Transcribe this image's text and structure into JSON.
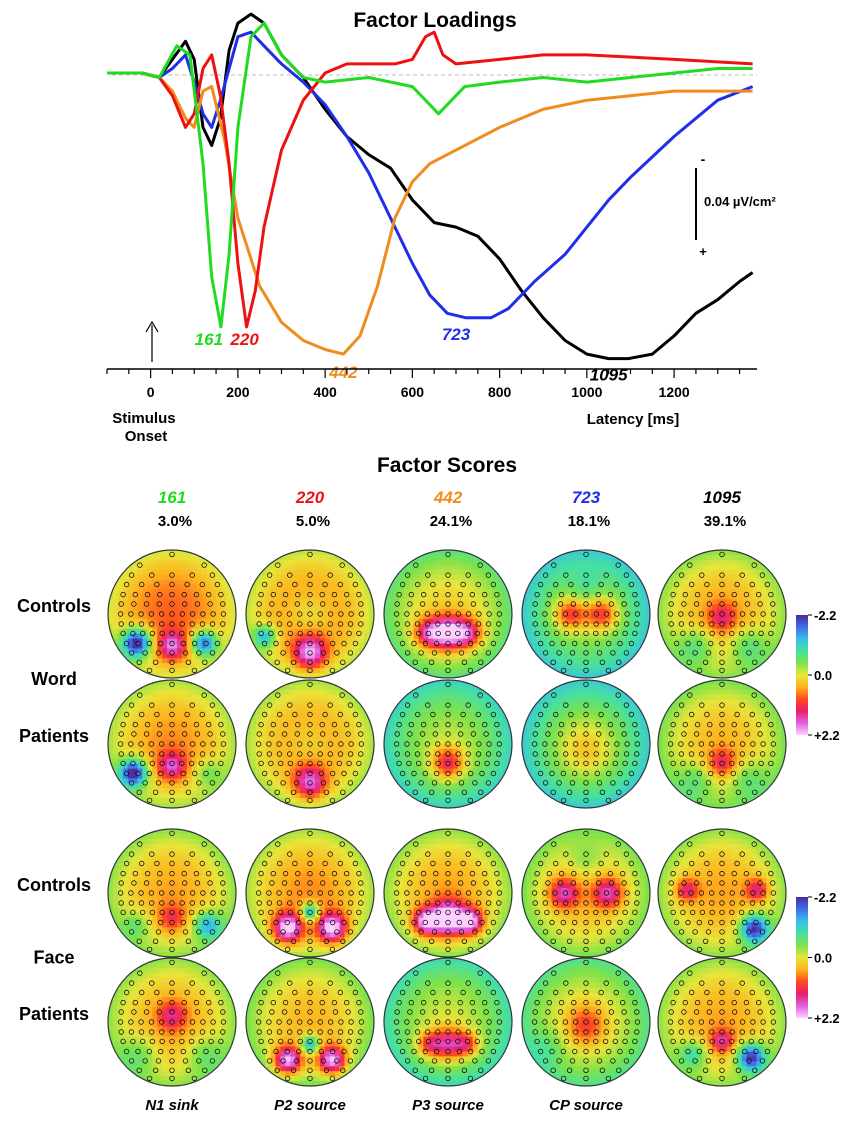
{
  "chart_data": [
    {
      "type": "line",
      "title": "Factor Loadings",
      "xlabel": "Latency [ms]",
      "ylabel": "",
      "xlim": [
        -100,
        1390
      ],
      "ylim": [
        -0.06,
        0.015
      ],
      "x_ticks": [
        0,
        200,
        400,
        600,
        800,
        1000,
        1200
      ],
      "annotations": {
        "onset": "Stimulus Onset",
        "scale_bar_label": "0.04 µV/cm²",
        "scale_bar_top": "-",
        "scale_bar_bottom": "+"
      },
      "series": [
        {
          "color": "#1fdc1f",
          "peak_label": "161",
          "x": [
            -100,
            -20,
            20,
            60,
            90,
            120,
            140,
            161,
            180,
            200,
            230,
            260,
            300,
            350,
            400,
            500,
            600,
            640,
            660,
            680,
            720,
            800,
            900,
            1000,
            1100,
            1200,
            1300,
            1380
          ],
          "y": [
            0,
            0,
            -0.001,
            0.006,
            0.004,
            -0.02,
            -0.045,
            -0.056,
            -0.04,
            -0.012,
            0.008,
            0.011,
            0.004,
            -0.001,
            -0.002,
            -0.001,
            -0.003,
            -0.007,
            -0.009,
            -0.007,
            -0.003,
            -0.002,
            -0.001,
            -0.002,
            -0.001,
            0,
            0.001,
            0.001
          ]
        },
        {
          "color": "#ee1111",
          "peak_label": "220",
          "x": [
            -100,
            -20,
            20,
            50,
            80,
            100,
            120,
            140,
            160,
            180,
            200,
            220,
            240,
            260,
            300,
            350,
            400,
            450,
            500,
            560,
            600,
            630,
            650,
            670,
            700,
            800,
            900,
            1000,
            1200,
            1380
          ],
          "y": [
            0,
            0,
            -0.001,
            -0.005,
            -0.012,
            -0.009,
            0.001,
            0.004,
            -0.005,
            -0.02,
            -0.042,
            -0.056,
            -0.048,
            -0.034,
            -0.017,
            -0.006,
            0,
            0.002,
            0.002,
            0.002,
            0.003,
            0.008,
            0.009,
            0.004,
            0.002,
            0.003,
            0.004,
            0.004,
            0.003,
            0.002
          ]
        },
        {
          "color": "#f08c1e",
          "peak_label": "442",
          "x": [
            -100,
            -20,
            20,
            50,
            80,
            100,
            120,
            140,
            170,
            200,
            250,
            300,
            350,
            400,
            442,
            480,
            520,
            560,
            600,
            640,
            700,
            800,
            900,
            1000,
            1100,
            1200,
            1300,
            1380
          ],
          "y": [
            0,
            0,
            -0.001,
            -0.004,
            -0.01,
            -0.012,
            -0.004,
            -0.003,
            -0.015,
            -0.032,
            -0.047,
            -0.055,
            -0.059,
            -0.061,
            -0.062,
            -0.058,
            -0.047,
            -0.032,
            -0.024,
            -0.02,
            -0.017,
            -0.012,
            -0.008,
            -0.006,
            -0.005,
            -0.004,
            -0.004,
            -0.004
          ]
        },
        {
          "color": "#1f2ee8",
          "peak_label": "723",
          "x": [
            -100,
            -20,
            20,
            50,
            80,
            100,
            120,
            140,
            160,
            200,
            230,
            260,
            300,
            350,
            400,
            450,
            500,
            550,
            600,
            640,
            680,
            723,
            780,
            820,
            880,
            950,
            1000,
            1050,
            1100,
            1200,
            1300,
            1380
          ],
          "y": [
            0,
            0,
            -0.001,
            0.001,
            0.004,
            -0.002,
            -0.009,
            -0.012,
            -0.006,
            0.008,
            0.009,
            0.006,
            0.002,
            -0.002,
            -0.007,
            -0.014,
            -0.022,
            -0.032,
            -0.042,
            -0.049,
            -0.053,
            -0.054,
            -0.054,
            -0.052,
            -0.046,
            -0.04,
            -0.034,
            -0.028,
            -0.023,
            -0.014,
            -0.006,
            -0.003
          ]
        },
        {
          "color": "#000000",
          "peak_label": "1095",
          "x": [
            -100,
            -20,
            20,
            50,
            80,
            100,
            120,
            140,
            160,
            180,
            200,
            230,
            260,
            300,
            350,
            400,
            450,
            500,
            550,
            600,
            650,
            700,
            750,
            800,
            850,
            900,
            950,
            1000,
            1050,
            1095,
            1150,
            1200,
            1250,
            1300,
            1350,
            1380
          ],
          "y": [
            0,
            0,
            -0.001,
            0.003,
            0.007,
            0.003,
            -0.012,
            -0.016,
            -0.01,
            0.005,
            0.011,
            0.013,
            0.011,
            0.004,
            -0.001,
            -0.008,
            -0.014,
            -0.018,
            -0.021,
            -0.028,
            -0.033,
            -0.034,
            -0.036,
            -0.041,
            -0.048,
            -0.054,
            -0.059,
            -0.062,
            -0.063,
            -0.063,
            -0.062,
            -0.058,
            -0.053,
            -0.05,
            -0.046,
            -0.044
          ]
        }
      ]
    },
    {
      "type": "heatmap",
      "title": "Factor Scores",
      "scale": {
        "min": -2.2,
        "mid": 0.0,
        "max": 2.2,
        "labels": [
          "-2.2",
          "0.0",
          "+2.2"
        ],
        "colors": [
          "#4a2aa0",
          "#3f6fe8",
          "#36c0ea",
          "#46e0a0",
          "#7ee24a",
          "#e8e53a",
          "#ffb21e",
          "#ff4a1e",
          "#e81e6e",
          "#e060e0",
          "#ffd0ff"
        ]
      },
      "columns": [
        {
          "label": "161",
          "percent": "3.0%",
          "color": "#1fdc1f",
          "footer": "N1 sink"
        },
        {
          "label": "220",
          "percent": "5.0%",
          "color": "#ee1111",
          "footer": "P2 source"
        },
        {
          "label": "442",
          "percent": "24.1%",
          "color": "#f08c1e",
          "footer": "P3 source"
        },
        {
          "label": "723",
          "percent": "18.1%",
          "color": "#1f2ee8",
          "footer": "CP source"
        },
        {
          "label": "1095",
          "percent": "39.1%",
          "color": "#000000",
          "footer": ""
        }
      ],
      "rows": [
        {
          "group": "Word",
          "label": "Controls",
          "maps": [
            {
              "base": 0.8,
              "blobs": [
                [
                  -0.55,
                  0.45,
                  -2.6,
                  0.16
                ],
                [
                  0.5,
                  0.45,
                  -2.1,
                  0.14
                ],
                [
                  0,
                  0.5,
                  1.4,
                  0.15
                ]
              ]
            },
            {
              "base": 0.7,
              "blobs": [
                [
                  0,
                  0.6,
                  1.8,
                  0.18
                ],
                [
                  0,
                  0,
                  -0.6,
                  0.25
                ],
                [
                  -0.7,
                  0.35,
                  -1.4,
                  0.12
                ]
              ]
            },
            {
              "base": 0.2,
              "blobs": [
                [
                  0,
                  0.3,
                  2.0,
                  0.18
                ],
                [
                  -0.3,
                  0.3,
                  1.5,
                  0.16
                ],
                [
                  0.3,
                  0.3,
                  1.5,
                  0.16
                ]
              ]
            },
            {
              "base": -0.3,
              "blobs": [
                [
                  -0.25,
                  0.0,
                  1.4,
                  0.18
                ],
                [
                  0.25,
                  0.0,
                  1.4,
                  0.18
                ],
                [
                  0,
                  -0.4,
                  -0.4,
                  0.2
                ]
              ]
            },
            {
              "base": 0.5,
              "blobs": [
                [
                  0,
                  0.05,
                  0.9,
                  0.15
                ],
                [
                  -0.4,
                  0.5,
                  -0.8,
                  0.2
                ],
                [
                  0.4,
                  0.5,
                  -0.8,
                  0.2
                ]
              ]
            }
          ]
        },
        {
          "group": "Word",
          "label": "Patients",
          "maps": [
            {
              "base": 0.6,
              "blobs": [
                [
                  -0.6,
                  0.45,
                  -2.4,
                  0.15
                ],
                [
                  0,
                  0.35,
                  1.3,
                  0.15
                ],
                [
                  0.55,
                  0.45,
                  -0.6,
                  0.15
                ]
              ]
            },
            {
              "base": 0.6,
              "blobs": [
                [
                  0,
                  0.6,
                  1.6,
                  0.18
                ],
                [
                  0,
                  0,
                  -0.4,
                  0.25
                ]
              ]
            },
            {
              "base": -0.2,
              "blobs": [
                [
                  0,
                  0.3,
                  1.5,
                  0.18
                ]
              ]
            },
            {
              "base": -0.3,
              "blobs": [
                [
                  0,
                  0.1,
                  0.6,
                  0.3
                ]
              ]
            },
            {
              "base": 0.4,
              "blobs": [
                [
                  0,
                  0.3,
                  1.0,
                  0.15
                ],
                [
                  -0.4,
                  0.55,
                  -0.6,
                  0.2
                ],
                [
                  0.4,
                  0.55,
                  -0.6,
                  0.2
                ]
              ]
            }
          ]
        },
        {
          "group": "Face",
          "label": "Controls",
          "maps": [
            {
              "base": 0.5,
              "blobs": [
                [
                  0,
                  0.4,
                  0.8,
                  0.15
                ],
                [
                  0.55,
                  0.5,
                  -1.4,
                  0.15
                ],
                [
                  -0.55,
                  0.5,
                  -0.6,
                  0.15
                ]
              ]
            },
            {
              "base": 0.6,
              "blobs": [
                [
                  -0.35,
                  0.55,
                  2.2,
                  0.16
                ],
                [
                  0.35,
                  0.55,
                  2.2,
                  0.16
                ],
                [
                  0,
                  0.3,
                  -1.8,
                  0.1
                ]
              ]
            },
            {
              "base": 0.5,
              "blobs": [
                [
                  0,
                  0.4,
                  2.4,
                  0.18
                ],
                [
                  -0.35,
                  0.45,
                  2.0,
                  0.14
                ],
                [
                  0.35,
                  0.45,
                  2.0,
                  0.14
                ]
              ]
            },
            {
              "base": 0.4,
              "blobs": [
                [
                  -0.35,
                  0.0,
                  1.4,
                  0.16
                ],
                [
                  0.35,
                  0.0,
                  1.4,
                  0.16
                ],
                [
                  0,
                  -0.5,
                  -0.5,
                  0.2
                ]
              ]
            },
            {
              "base": 0.5,
              "blobs": [
                [
                  0.5,
                  0.55,
                  -2.2,
                  0.15
                ],
                [
                  -0.55,
                  -0.05,
                  1.2,
                  0.12
                ],
                [
                  0.55,
                  -0.05,
                  1.2,
                  0.12
                ]
              ]
            }
          ]
        },
        {
          "group": "Face",
          "label": "Patients",
          "maps": [
            {
              "base": 0.5,
              "blobs": [
                [
                  0,
                  -0.1,
                  1.0,
                  0.15
                ],
                [
                  -0.5,
                  0.5,
                  -0.6,
                  0.2
                ],
                [
                  0.5,
                  0.5,
                  -0.6,
                  0.2
                ]
              ]
            },
            {
              "base": 0.4,
              "blobs": [
                [
                  -0.35,
                  0.6,
                  2.2,
                  0.15
                ],
                [
                  0.35,
                  0.6,
                  2.2,
                  0.15
                ],
                [
                  0,
                  0.35,
                  -1.6,
                  0.1
                ]
              ]
            },
            {
              "base": -0.1,
              "blobs": [
                [
                  0,
                  0.35,
                  1.6,
                  0.18
                ],
                [
                  -0.3,
                  0.35,
                  1.2,
                  0.14
                ],
                [
                  0.3,
                  0.35,
                  1.2,
                  0.14
                ]
              ]
            },
            {
              "base": 0.1,
              "blobs": [
                [
                  0,
                  0.05,
                  0.9,
                  0.22
                ],
                [
                  -0.6,
                  0.4,
                  -0.4,
                  0.2
                ]
              ]
            },
            {
              "base": 0.5,
              "blobs": [
                [
                  0.45,
                  0.55,
                  -2.2,
                  0.15
                ],
                [
                  -0.45,
                  0.5,
                  -1.0,
                  0.15
                ],
                [
                  0,
                  0.3,
                  1.2,
                  0.12
                ]
              ]
            }
          ]
        }
      ]
    }
  ]
}
